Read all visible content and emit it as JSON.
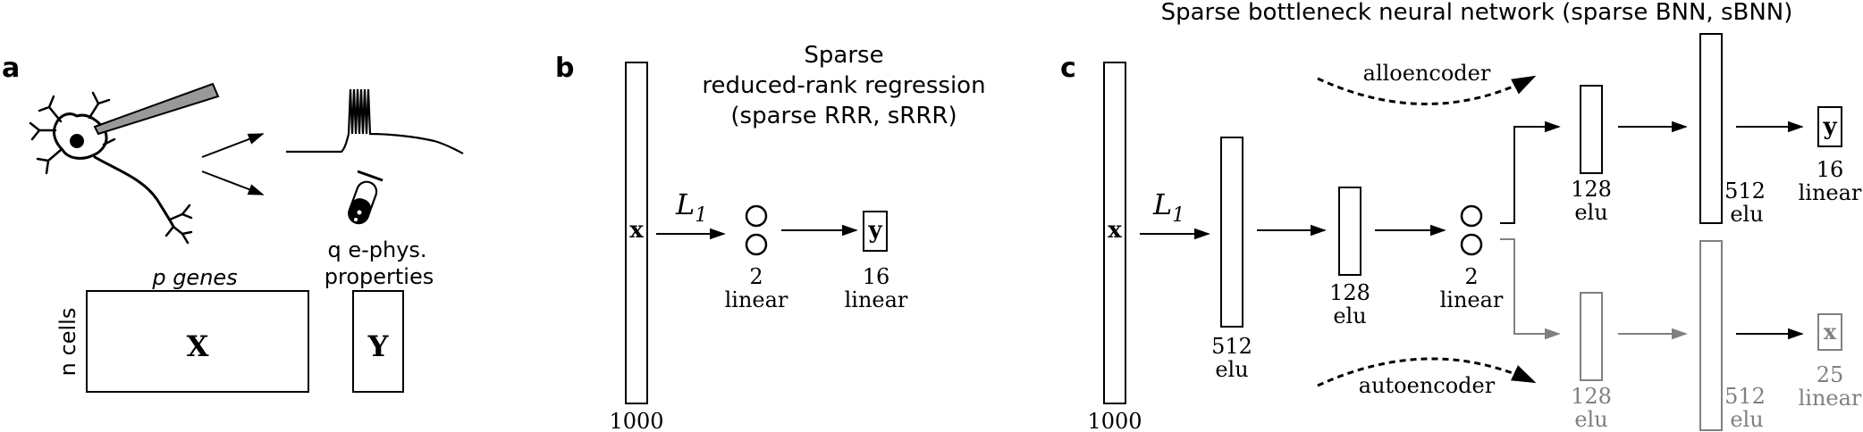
{
  "panels": {
    "a": {
      "letter": "a",
      "genes_label": "p genes",
      "ephys_label_1": "q e-phys.",
      "ephys_label_2": "properties",
      "cells_label": "n cells",
      "X": "X",
      "Y": "Y"
    },
    "b": {
      "letter": "b",
      "title_1": "Sparse",
      "title_2": "reduced-rank regression",
      "title_3": "(sparse RRR, sRRR)",
      "x": "x",
      "y": "y",
      "l1": "L",
      "l1_sub": "1",
      "in_size": "1000",
      "latent_size": "2",
      "latent_act": "linear",
      "out_size": "16",
      "out_act": "linear"
    },
    "c": {
      "letter": "c",
      "title": "Sparse bottleneck neural network (sparse BNN, sBNN)",
      "alloencoder": "alloencoder",
      "autoencoder": "autoencoder",
      "x": "x",
      "y": "y",
      "x_out": "x",
      "l1": "L",
      "l1_sub": "1",
      "in_size": "1000",
      "h1_size": "512",
      "h1_act": "elu",
      "h2_size": "128",
      "h2_act": "elu",
      "latent_size": "2",
      "latent_act": "linear",
      "d1_size": "128",
      "d1_act": "elu",
      "d2_size": "512",
      "d2_act": "elu",
      "y_size": "16",
      "y_act": "linear",
      "g1_size": "128",
      "g1_act": "elu",
      "g2_size": "512",
      "g2_act": "elu",
      "x_size": "25",
      "x_act": "linear"
    }
  },
  "colors": {
    "ink": "#000000",
    "grey": "#808080"
  }
}
